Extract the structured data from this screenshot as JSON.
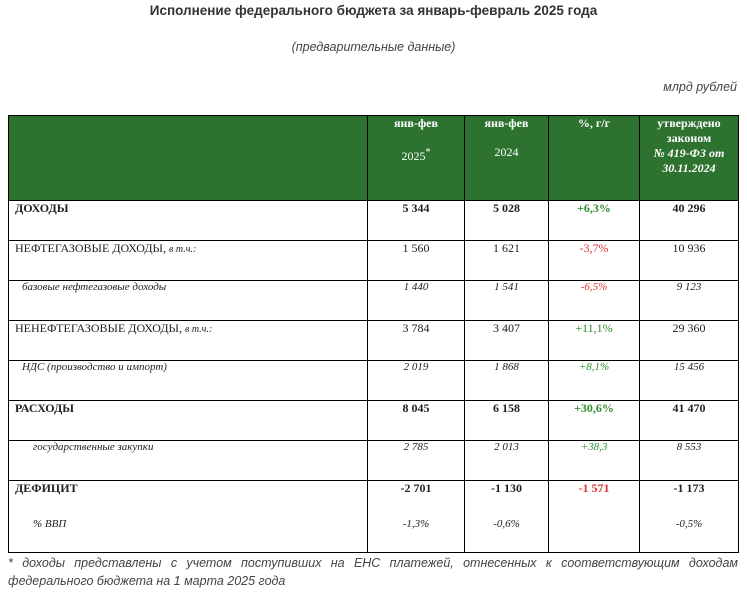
{
  "title": "Исполнение федерального бюджета за январь-февраль 2025 года",
  "subtitle": "(предварительные данные)",
  "units": "млрд рублей",
  "header": {
    "col1_line1": "янв-фев",
    "col1_line2": "2025",
    "col1_mark": "*",
    "col2_line1": "янв-фев",
    "col2_line2": "2024",
    "col3": "%, г/г",
    "col4_line1": "утверждено",
    "col4_line2": "законом",
    "col4_line3": "№ 419-ФЗ от",
    "col4_line4": "30.11.2024"
  },
  "rows": [
    {
      "label": "ДОХОДЫ",
      "qualifier": "",
      "v2025": "5 344",
      "v2024": "5 028",
      "pct": "+6,3%",
      "law": "40 296"
    },
    {
      "label": "НЕФТЕГАЗОВЫЕ ДОХОДЫ,",
      "qualifier": "в т.ч.:",
      "v2025": "1 560",
      "v2024": "1 621",
      "pct": "-3,7%",
      "law": "10 936"
    },
    {
      "label": "базовые нефтегазовые доходы",
      "qualifier": "",
      "v2025": "1 440",
      "v2024": "1 541",
      "pct": "-6,5%",
      "law": "9 123"
    },
    {
      "label": "НЕНЕФТЕГАЗОВЫЕ ДОХОДЫ,",
      "qualifier": "в т.ч.:",
      "v2025": "3 784",
      "v2024": "3 407",
      "pct": "+11,1%",
      "law": "29 360"
    },
    {
      "label": "НДС (производство и импорт)",
      "qualifier": "",
      "v2025": "2 019",
      "v2024": "1 868",
      "pct": "+8,1%",
      "law": "15 456"
    },
    {
      "label": "РАСХОДЫ",
      "qualifier": "",
      "v2025": "8 045",
      "v2024": "6 158",
      "pct": "+30,6%",
      "law": "41 470"
    },
    {
      "label": "государственные закупки",
      "qualifier": "",
      "v2025": "2 785",
      "v2024": "2 013",
      "pct": "+38,3",
      "law": "8 553"
    },
    {
      "label": "ДЕФИЦИТ",
      "qualifier": "",
      "v2025": "-2 701",
      "v2024": "-1 130",
      "pct": "-1 571",
      "law": "-1 173"
    },
    {
      "label": "% ВВП",
      "qualifier": "",
      "v2025": "-1,3%",
      "v2024": "-0,6%",
      "pct": "",
      "law": "-0,5%"
    }
  ],
  "colors": {
    "header_bg": "#2e7230",
    "positive": "#2f8f2f",
    "negative": "#e23232"
  },
  "footnote": {
    "line1": "* доходы представлены с учетом поступивших на ЕНС платежей, отнесенных к соответствующим доходам",
    "line2": "федерального бюджета на 1 марта 2025 года"
  }
}
